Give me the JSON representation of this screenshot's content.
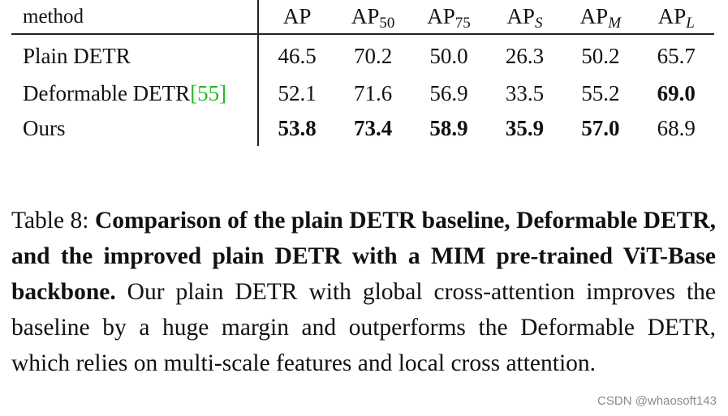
{
  "table": {
    "header": {
      "method": "method",
      "columns": [
        {
          "base": "AP",
          "sub": ""
        },
        {
          "base": "AP",
          "sub": "50"
        },
        {
          "base": "AP",
          "sub": "75"
        },
        {
          "base": "AP",
          "sub": "S"
        },
        {
          "base": "AP",
          "sub": "M"
        },
        {
          "base": "AP",
          "sub": "L"
        }
      ]
    },
    "rows": [
      {
        "method": "Plain DETR",
        "citation": "",
        "values": [
          "46.5",
          "70.2",
          "50.0",
          "26.3",
          "50.2",
          "65.7"
        ],
        "bold": [
          false,
          false,
          false,
          false,
          false,
          false
        ]
      },
      {
        "method": "Deformable DETR",
        "citation": "[55]",
        "values": [
          "52.1",
          "71.6",
          "56.9",
          "33.5",
          "55.2",
          "69.0"
        ],
        "bold": [
          false,
          false,
          false,
          false,
          false,
          true
        ]
      },
      {
        "method": "Ours",
        "citation": "",
        "values": [
          "53.8",
          "73.4",
          "58.9",
          "35.9",
          "57.0",
          "68.9"
        ],
        "bold": [
          true,
          true,
          true,
          true,
          true,
          false
        ]
      }
    ]
  },
  "caption": {
    "label": "Table 8:",
    "bold_text": "Comparison of the plain DETR baseline, Deformable DETR, and the improved plain DETR with a MIM pre-trained ViT-Base backbone.",
    "body_text": "Our plain DETR with global cross-attention improves the baseline by a huge margin and outperforms the Deformable DETR, which relies on multi-scale features and local cross attention."
  },
  "watermark": "CSDN @whaosoft143"
}
